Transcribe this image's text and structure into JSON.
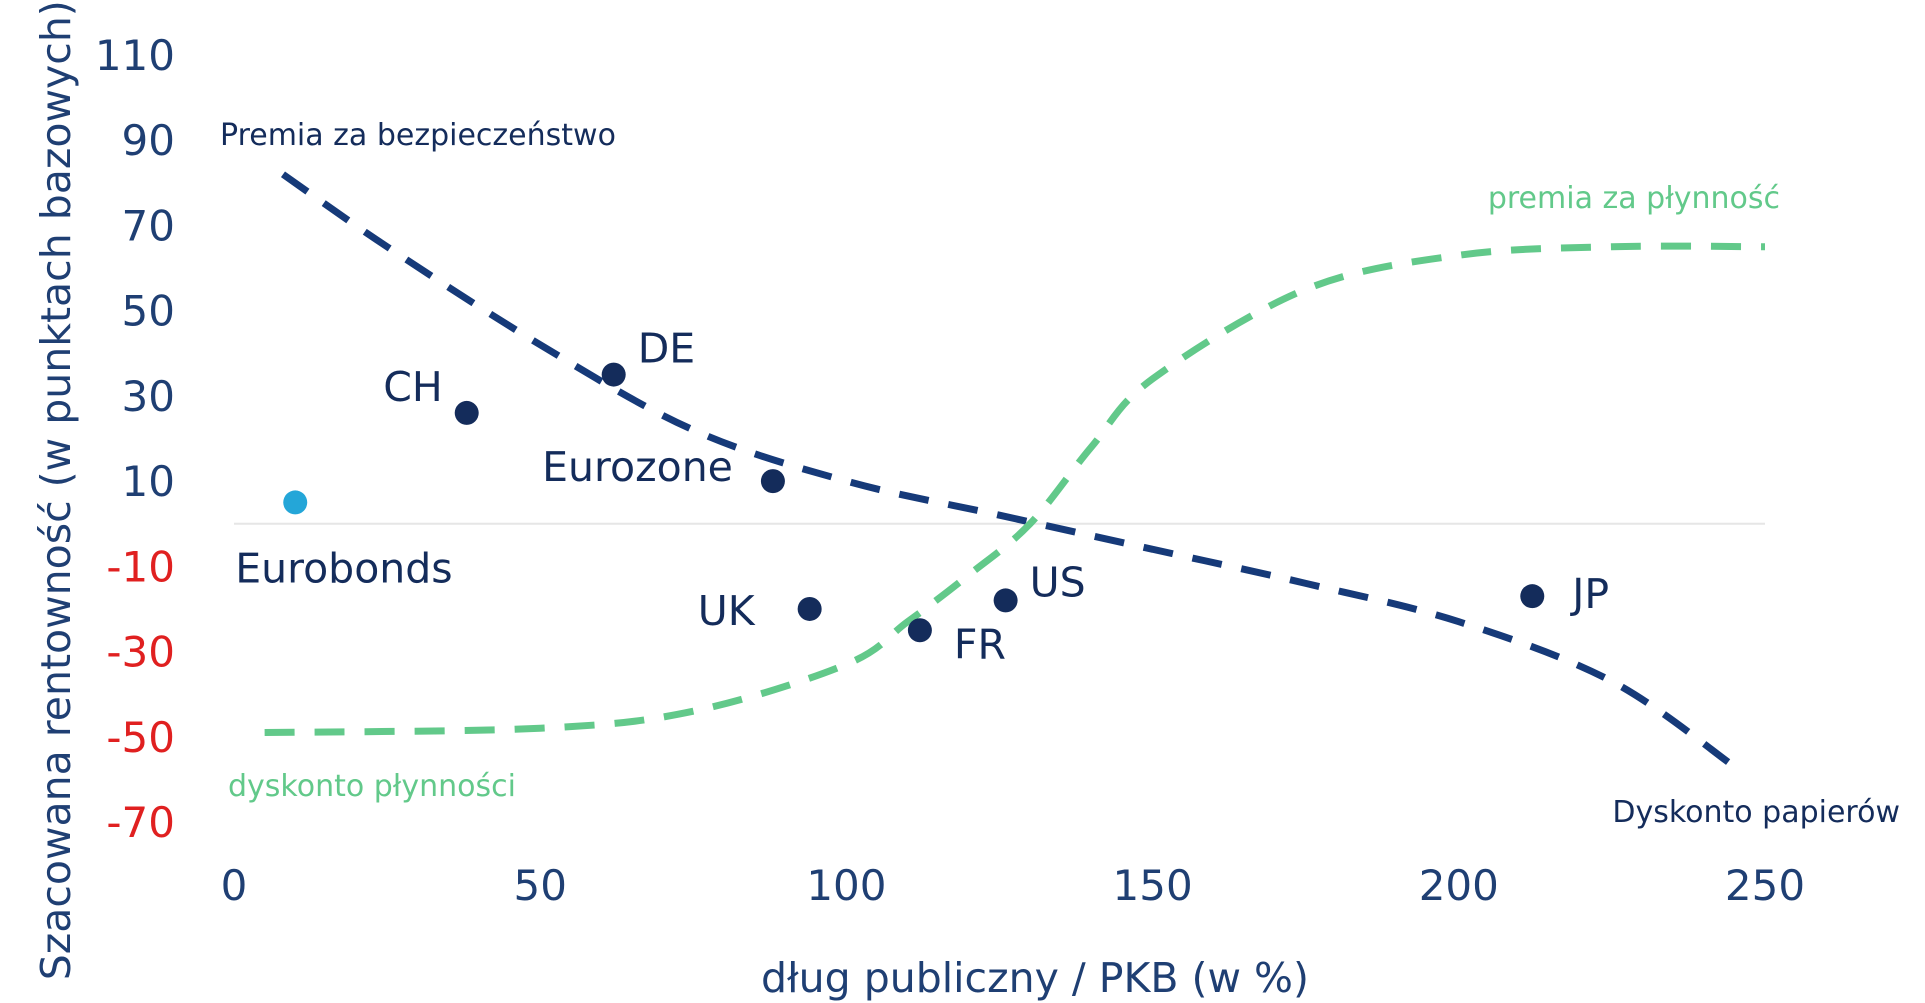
{
  "chart_data": {
    "type": "scatter",
    "xlabel": "dług publiczny / PKB (w %)",
    "ylabel": "Szacowana rentowność (w punktach bazowych)*",
    "xlim": [
      0,
      250
    ],
    "ylim": [
      -70,
      110
    ],
    "x_ticks": [
      0,
      50,
      100,
      150,
      200,
      250
    ],
    "y_ticks": [
      110,
      90,
      70,
      50,
      30,
      10,
      -10,
      -30,
      -50,
      -70
    ],
    "colors": {
      "axis_text": "#1f3f73",
      "negative_tick": "#e02020",
      "points": "#142c5b",
      "eurobonds": "#24a6d8",
      "safety_curve": "#163a79",
      "liquidity_curve": "#62c98a",
      "zero_line": "#e6e6e6"
    },
    "points": [
      {
        "label": "CH",
        "x": 38,
        "y": 26
      },
      {
        "label": "DE",
        "x": 62,
        "y": 35
      },
      {
        "label": "Eurozone",
        "x": 88,
        "y": 10
      },
      {
        "label": "UK",
        "x": 94,
        "y": -20
      },
      {
        "label": "FR",
        "x": 112,
        "y": -25
      },
      {
        "label": "US",
        "x": 126,
        "y": -18
      },
      {
        "label": "JP",
        "x": 212,
        "y": -17
      },
      {
        "label": "Eurobonds",
        "x": 10,
        "y": 5
      }
    ],
    "series": [
      {
        "name": "Premia za bezpieczeństwo",
        "end_label": "Dyskonto papierów",
        "x": [
          8,
          25,
          50,
          75,
          100,
          125,
          150,
          175,
          200,
          225,
          245
        ],
        "y": [
          82,
          65,
          42,
          22,
          10,
          2,
          -6,
          -14,
          -23,
          -37,
          -57
        ]
      },
      {
        "name": "premia za płynność",
        "start_label": "dyskonto płynności",
        "x": [
          5,
          50,
          75,
          100,
          110,
          120,
          130,
          140,
          150,
          175,
          200,
          225,
          250
        ],
        "y": [
          -49,
          -48,
          -44,
          -33,
          -23,
          -12,
          0,
          18,
          34,
          55,
          63,
          65,
          65
        ]
      }
    ]
  }
}
